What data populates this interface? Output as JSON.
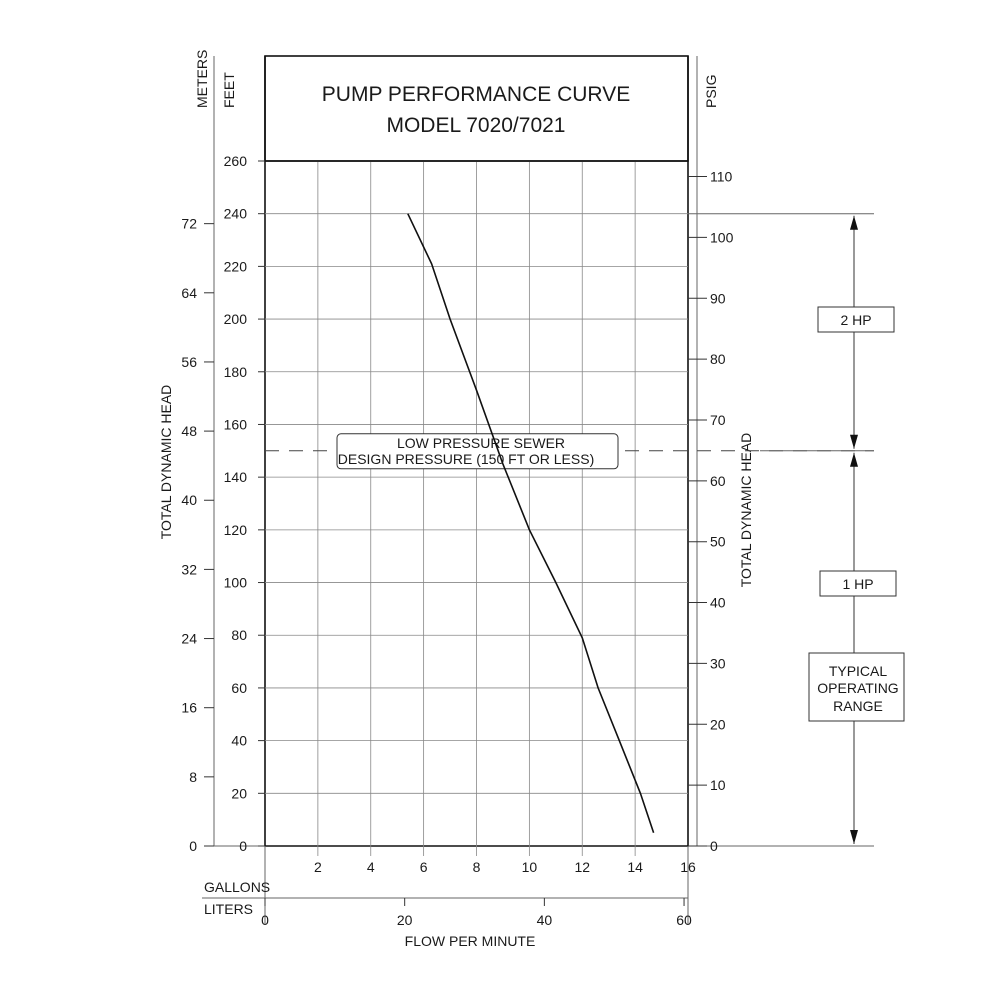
{
  "chart_data": {
    "type": "line",
    "title_line1": "PUMP PERFORMANCE CURVE",
    "title_line2": "MODEL 7020/7021",
    "units": {
      "meters": "METERS",
      "feet": "FEET",
      "psig": "PSIG",
      "gallons": "GALLONS",
      "liters": "LITERS"
    },
    "ylabel_left": "TOTAL DYNAMIC HEAD",
    "ylabel_right": "TOTAL DYNAMIC HEAD",
    "xlabel": "FLOW PER MINUTE",
    "ylim_feet": [
      0,
      260
    ],
    "xlim_gallons": [
      0,
      16
    ],
    "feet_ticks": [
      "0",
      "20",
      "40",
      "60",
      "80",
      "100",
      "120",
      "140",
      "160",
      "180",
      "200",
      "220",
      "240",
      "260"
    ],
    "meters_ticks": [
      "0",
      "8",
      "16",
      "24",
      "32",
      "40",
      "48",
      "56",
      "64",
      "72"
    ],
    "psig_ticks": [
      "0",
      "10",
      "20",
      "30",
      "40",
      "50",
      "60",
      "70",
      "80",
      "90",
      "100",
      "110"
    ],
    "gallon_ticks": [
      "2",
      "4",
      "6",
      "8",
      "10",
      "12",
      "14",
      "16"
    ],
    "liter_ticks": [
      "0",
      "20",
      "40",
      "60"
    ],
    "grid": true,
    "series": [
      {
        "x_gpm": [
          5.4,
          6.3,
          7.0,
          8.0,
          9.0,
          10.0,
          11.0,
          12.0,
          12.6,
          13.4,
          14.2,
          14.7
        ],
        "y_feet": [
          240,
          221,
          200,
          173,
          145,
          120,
          100,
          79,
          60,
          40,
          20,
          5
        ]
      }
    ],
    "annotations": {
      "design_pressure_line1": "LOW PRESSURE SEWER",
      "design_pressure_line2": "DESIGN PRESSURE (150 FT OR LESS)",
      "design_pressure_ft": 150,
      "hp_2": "2 HP",
      "hp_1": "1 HP",
      "typical_line1": "TYPICAL",
      "typical_line2": "OPERATING",
      "typical_line3": "RANGE",
      "range_top_ft": 240,
      "range_mid_ft": 150,
      "range_bottom_ft": 0
    }
  }
}
